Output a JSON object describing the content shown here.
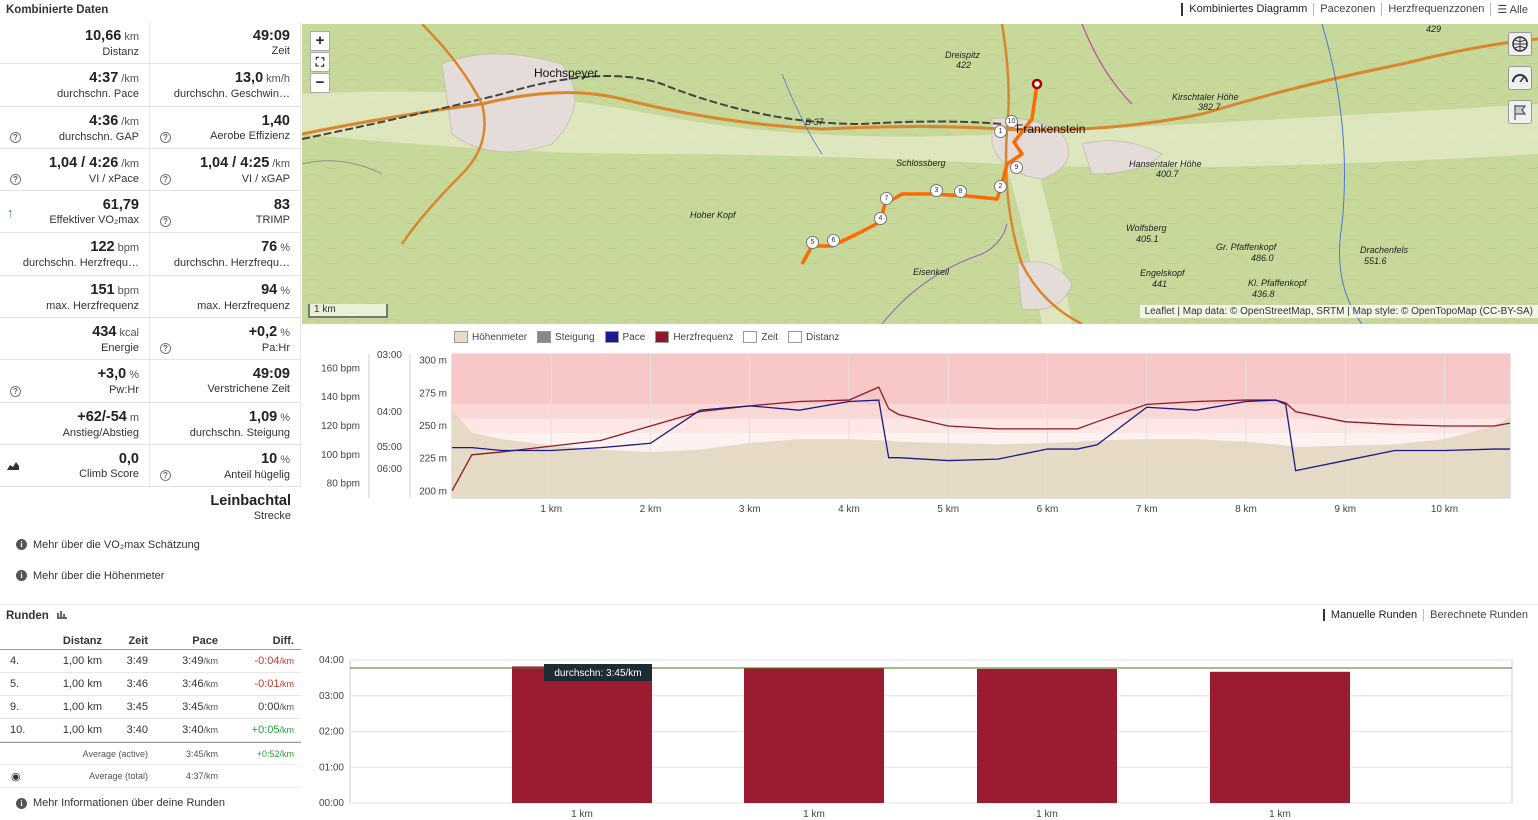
{
  "header": {
    "title": "Kombinierte Daten",
    "tabs": [
      {
        "label": "Kombiniertes Diagramm",
        "active": true
      },
      {
        "label": "Pacezonen",
        "active": false
      },
      {
        "label": "Herzfrequenzzonen",
        "active": false
      },
      {
        "label": "☰ Alle",
        "active": false
      }
    ]
  },
  "stats": {
    "rows": [
      [
        {
          "value": "10,66",
          "unit": "km",
          "label": "Distanz"
        },
        {
          "value": "49:09",
          "unit": "",
          "label": "Zeit"
        }
      ],
      [
        {
          "value": "4:37",
          "unit": "/km",
          "label": "durchschn. Pace"
        },
        {
          "value": "13,0",
          "unit": "km/h",
          "label": "durchschn. Geschwin…"
        }
      ],
      [
        {
          "value": "4:36",
          "unit": "/km",
          "label": "durchschn. GAP",
          "icon": "question-icon"
        },
        {
          "value": "1,40",
          "unit": "",
          "label": "Aerobe Effizienz",
          "icon": "question-icon"
        }
      ],
      [
        {
          "value": "1,04 / 4:26",
          "unit": "/km",
          "label": "VI / xPace",
          "icon": "question-icon"
        },
        {
          "value": "1,04 / 4:25",
          "unit": "/km",
          "label": "VI / xGAP",
          "icon": "question-icon"
        }
      ],
      [
        {
          "value": "61,79",
          "unit": "",
          "label": "Effektiver VO₂max",
          "icon": "arrow-up-icon"
        },
        {
          "value": "83",
          "unit": "",
          "label": "TRIMP",
          "icon": "question-icon"
        }
      ],
      [
        {
          "value": "122",
          "unit": "bpm",
          "label": "durchschn. Herzfrequ…"
        },
        {
          "value": "76",
          "unit": "%",
          "label": "durchschn. Herzfrequ…"
        }
      ],
      [
        {
          "value": "151",
          "unit": "bpm",
          "label": "max. Herzfrequenz"
        },
        {
          "value": "94",
          "unit": "%",
          "label": "max. Herzfrequenz"
        }
      ],
      [
        {
          "value": "434",
          "unit": "kcal",
          "label": "Energie"
        },
        {
          "value": "+0,2",
          "unit": "%",
          "label": "Pa:Hr",
          "icon": "question-icon"
        }
      ],
      [
        {
          "value": "+3,0",
          "unit": "%",
          "label": "Pw:Hr",
          "icon": "question-icon"
        },
        {
          "value": "49:09",
          "unit": "",
          "label": "Verstrichene Zeit"
        }
      ],
      [
        {
          "value": "+62/-54",
          "unit": "m",
          "label": "Anstieg/Abstieg"
        },
        {
          "value": "1,09",
          "unit": "%",
          "label": "durchschn. Steigung"
        }
      ],
      [
        {
          "value": "0,0",
          "unit": "",
          "label": "Climb Score",
          "icon": "chart-area-icon"
        },
        {
          "value": "10",
          "unit": "%",
          "label": "Anteil hügelig",
          "icon": "question-icon"
        }
      ]
    ],
    "route": {
      "value": "Leinbachtal",
      "label": "Strecke"
    },
    "links": [
      "Mehr über die VO₂max Schätzung",
      "Mehr über die Höhenmeter"
    ]
  },
  "map": {
    "zoom_in": "+",
    "zoom_out": "−",
    "fullscreen": "⛶",
    "attribution": "Leaflet | Map data: © OpenStreetMap, SRTM | Map style: © OpenTopoMap (CC-BY-SA)",
    "scale": "1 km",
    "labels": [
      {
        "text": "Hochspeyer",
        "kind": "town"
      },
      {
        "text": "Frankenstein",
        "kind": "town"
      },
      {
        "text": "Dreispitz",
        "kind": "peak"
      },
      {
        "text": "422",
        "kind": "peak"
      },
      {
        "text": "Schlossberg",
        "kind": "peak"
      },
      {
        "text": "Hoher Kopf",
        "kind": "peak"
      },
      {
        "text": "Eisenkeil",
        "kind": "peak"
      },
      {
        "text": "Kirschtaler Höhe",
        "kind": "peak"
      },
      {
        "text": "382.7",
        "kind": "peak"
      },
      {
        "text": "Hansentaler Höhe",
        "kind": "peak"
      },
      {
        "text": "400.7",
        "kind": "peak"
      },
      {
        "text": "Wolfsberg",
        "kind": "peak"
      },
      {
        "text": "405.1",
        "kind": "peak"
      },
      {
        "text": "Gr. Pfaffenkopf",
        "kind": "peak"
      },
      {
        "text": "486.0",
        "kind": "peak"
      },
      {
        "text": "Engelskopf",
        "kind": "peak"
      },
      {
        "text": "441",
        "kind": "peak"
      },
      {
        "text": "Kl. Pfaffenkopf",
        "kind": "peak"
      },
      {
        "text": "436.8",
        "kind": "peak"
      },
      {
        "text": "Drachenfels",
        "kind": "peak"
      },
      {
        "text": "551.6",
        "kind": "peak"
      },
      {
        "text": "B 37",
        "kind": "road"
      },
      {
        "text": "429",
        "kind": "peak"
      }
    ],
    "markers": [
      "1",
      "2",
      "3",
      "4",
      "5",
      "6",
      "7",
      "8",
      "9",
      "10"
    ]
  },
  "combo_legend": [
    {
      "label": "Höhenmeter",
      "color": "#e8dcc6"
    },
    {
      "label": "Steigung",
      "color": "#888888"
    },
    {
      "label": "Pace",
      "color": "#1a1a8c"
    },
    {
      "label": "Herzfrequenz",
      "color": "#8c1a2a"
    },
    {
      "label": "Zeit",
      "color": "#ffffff"
    },
    {
      "label": "Distanz",
      "color": "#ffffff"
    }
  ],
  "chart_data": [
    {
      "type": "line",
      "title": "",
      "x": [
        0,
        0.2,
        0.5,
        1,
        1.5,
        2,
        2.5,
        3,
        3.5,
        4,
        4.3,
        4.4,
        4.5,
        5,
        5.5,
        6,
        6.3,
        6.5,
        7,
        7.5,
        8,
        8.3,
        8.4,
        8.5,
        9,
        9.5,
        10,
        10.5,
        10.66
      ],
      "x_ticks": [
        "1 km",
        "2 km",
        "3 km",
        "4 km",
        "5 km",
        "6 km",
        "7 km",
        "8 km",
        "9 km",
        "10 km"
      ],
      "axes": {
        "hr": {
          "ticks": [
            "80 bpm",
            "100 bpm",
            "120 bpm",
            "140 bpm",
            "160 bpm"
          ],
          "range": [
            70,
            170
          ]
        },
        "pace": {
          "ticks": [
            "03:00",
            "04:00",
            "05:00",
            "06:00"
          ]
        },
        "elevation": {
          "ticks": [
            "200 m",
            "225 m",
            "250 m",
            "275 m",
            "300 m"
          ],
          "range": [
            195,
            305
          ]
        }
      },
      "series": [
        {
          "name": "Herzfrequenz",
          "color": "#8c1a2a",
          "values": [
            75,
            100,
            102,
            106,
            110,
            120,
            130,
            134,
            137,
            138,
            147,
            132,
            128,
            120,
            118,
            118,
            118,
            123,
            135,
            137,
            138,
            138,
            136,
            130,
            123,
            121,
            120,
            120,
            122
          ]
        },
        {
          "name": "Pace",
          "color": "#1a1a8c",
          "values": [
            105,
            105,
            103,
            103,
            105,
            108,
            131,
            134,
            131,
            137,
            138,
            98,
            98,
            96,
            97,
            104,
            104,
            107,
            133,
            131,
            137,
            138,
            135,
            89,
            96,
            103,
            103,
            104,
            104
          ]
        },
        {
          "name": "Höhenmeter",
          "color": "#d9c9ac",
          "values": [
            262,
            245,
            240,
            235,
            232,
            230,
            232,
            237,
            240,
            240,
            239,
            239,
            238,
            237,
            236,
            237,
            238,
            239,
            240,
            240,
            238,
            236,
            235,
            234,
            235,
            236,
            240,
            250,
            257
          ]
        }
      ]
    },
    {
      "type": "bar",
      "title": "",
      "categories": [
        "1 km",
        "1 km",
        "1 km",
        "1 km"
      ],
      "values": [
        3.82,
        3.77,
        3.75,
        3.67
      ],
      "y_ticks": [
        "00:00",
        "01:00",
        "02:00",
        "03:00",
        "04:00"
      ],
      "ylim": [
        0,
        4
      ],
      "reference_line": {
        "label": "durchschn: 3:45/km",
        "value": 3.75
      },
      "bar_color": "#9b1b30"
    }
  ],
  "runden": {
    "title": "Runden",
    "tabs": [
      {
        "label": "Manuelle Runden",
        "active": true
      },
      {
        "label": "Berechnete Runden",
        "active": false
      }
    ],
    "columns": [
      "",
      "Distanz",
      "Zeit",
      "Pace",
      "Diff."
    ],
    "rows": [
      {
        "nr": "4.",
        "dist": "1,00 km",
        "time": "3:49",
        "pace": "3:49",
        "pace_unit": "/km",
        "diff": "-0:04",
        "diff_unit": "/km",
        "sign": "neg"
      },
      {
        "nr": "5.",
        "dist": "1,00 km",
        "time": "3:46",
        "pace": "3:46",
        "pace_unit": "/km",
        "diff": "-0:01",
        "diff_unit": "/km",
        "sign": "neg"
      },
      {
        "nr": "9.",
        "dist": "1,00 km",
        "time": "3:45",
        "pace": "3:45",
        "pace_unit": "/km",
        "diff": "0:00",
        "diff_unit": "/km",
        "sign": "neutral"
      },
      {
        "nr": "10.",
        "dist": "1,00 km",
        "time": "3:40",
        "pace": "3:40",
        "pace_unit": "/km",
        "diff": "+0:05",
        "diff_unit": "/km",
        "sign": "pos"
      }
    ],
    "avg_active": {
      "label": "Average (active)",
      "pace": "3:45/km",
      "diff": "+0:52",
      "diff_unit": "/km"
    },
    "avg_total": {
      "label": "Average (total)",
      "pace": "4:37/km"
    },
    "more_link": "Mehr Informationen über deine Runden"
  }
}
